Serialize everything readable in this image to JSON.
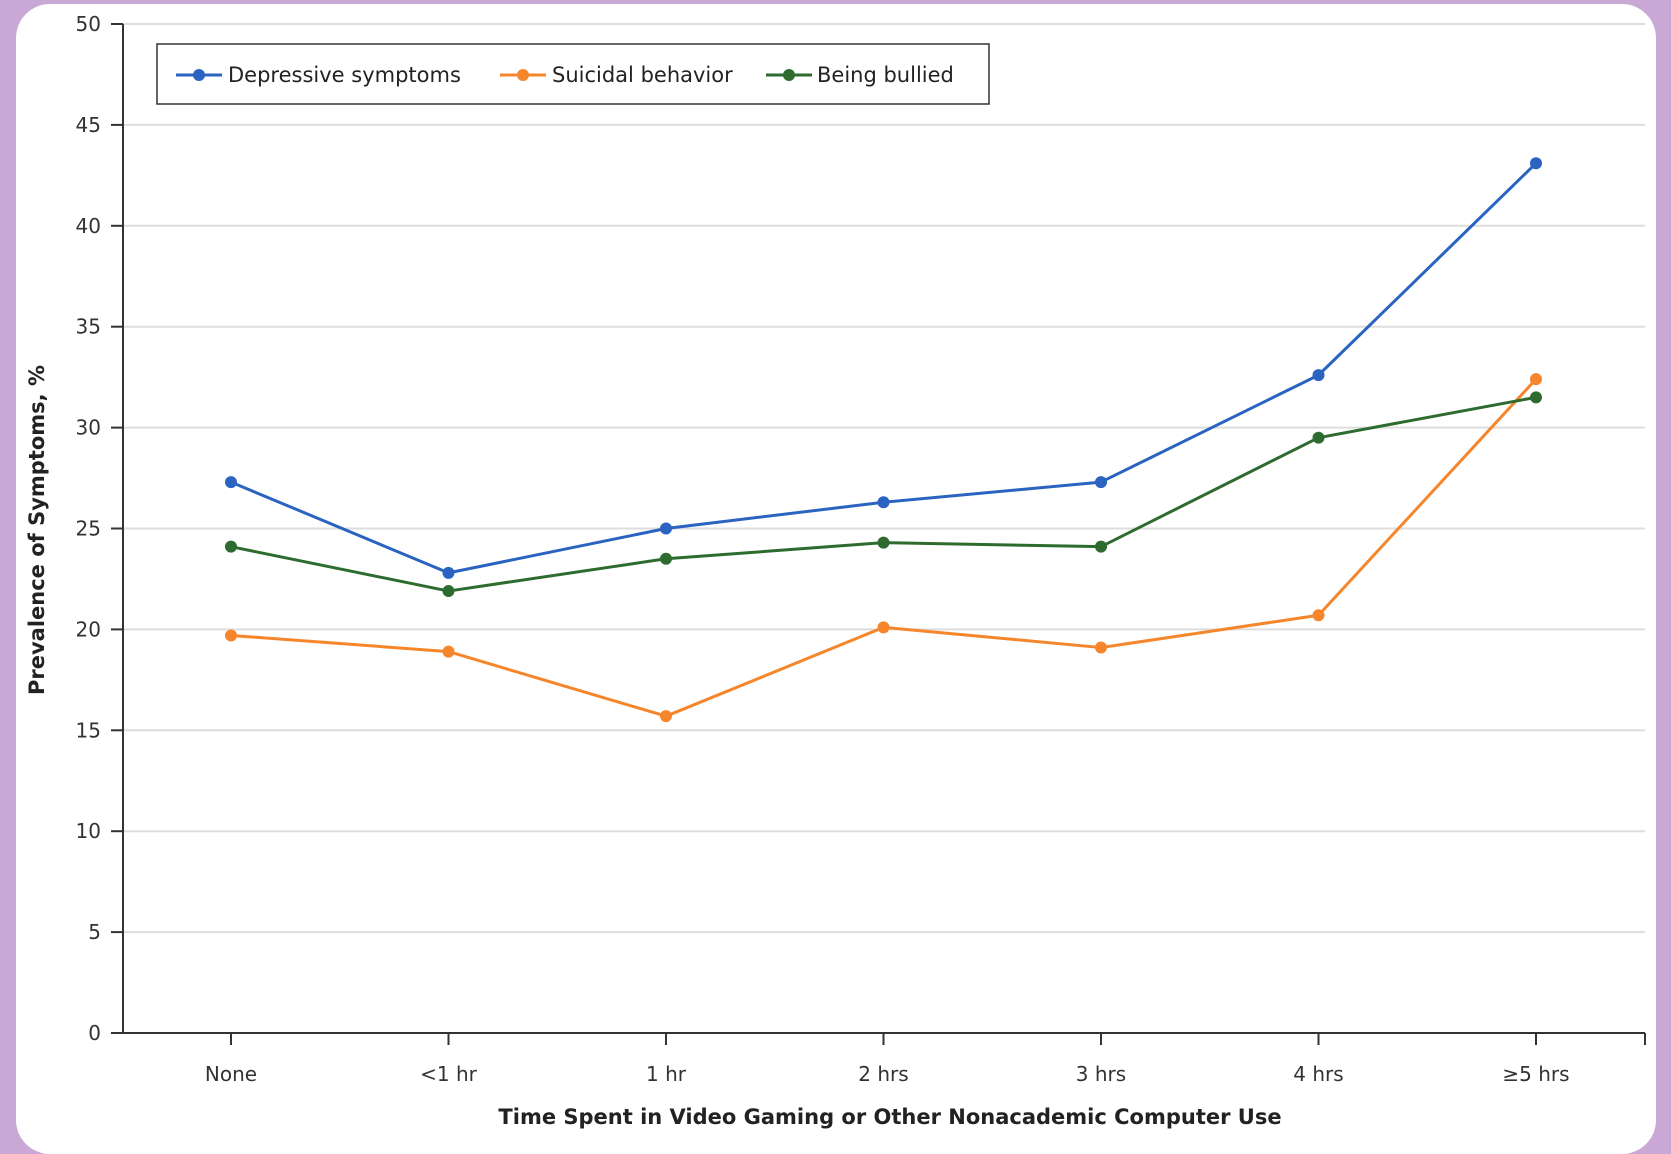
{
  "chart_data": {
    "type": "line",
    "title": "",
    "xlabel": "Time Spent in Video Gaming or Other Nonacademic Computer Use",
    "ylabel": "Prevalence of Symptoms, %",
    "ylim": [
      0,
      50
    ],
    "yticks": [
      0,
      5,
      10,
      15,
      20,
      25,
      30,
      35,
      40,
      45,
      50
    ],
    "categories": [
      "None",
      "<1 hr",
      "1 hr",
      "2 hrs",
      "3 hrs",
      "4 hrs",
      "≥5 hrs"
    ],
    "grid": true,
    "legend_position": "top-left",
    "series": [
      {
        "name": "Depressive symptoms",
        "color": "#2a64c0",
        "values": [
          27.3,
          22.8,
          25.0,
          26.3,
          27.3,
          32.6,
          43.1
        ]
      },
      {
        "name": "Suicidal behavior",
        "color": "#f5862b",
        "values": [
          19.7,
          18.9,
          15.7,
          20.1,
          19.1,
          20.7,
          32.4
        ]
      },
      {
        "name": "Being bullied",
        "color": "#2e6b2e",
        "values": [
          24.1,
          21.9,
          23.5,
          24.3,
          24.1,
          29.5,
          31.5
        ]
      }
    ]
  }
}
